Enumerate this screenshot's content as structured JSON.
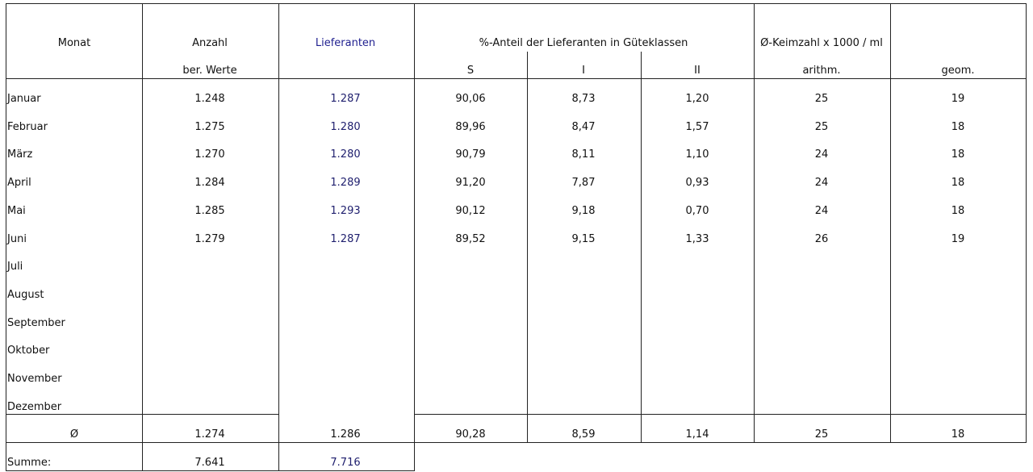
{
  "header": {
    "monat": "Monat",
    "anzahl": "Anzahl",
    "ber_werte": "ber. Werte",
    "lieferanten": "Lieferanten",
    "anteil": "%-Anteil der Lieferanten in Güteklassen",
    "s": "S",
    "i": "I",
    "ii": "II",
    "keimzahl": "Ø-Keimzahl x 1000 / ml",
    "arithm": "arithm.",
    "geom": "geom."
  },
  "rows": [
    {
      "month": "Januar",
      "anzahl": "1.248",
      "lieferanten": "1.287",
      "s": "90,06",
      "i": "8,73",
      "ii": "1,20",
      "arithm": "25",
      "geom": "19"
    },
    {
      "month": "Februar",
      "anzahl": "1.275",
      "lieferanten": "1.280",
      "s": "89,96",
      "i": "8,47",
      "ii": "1,57",
      "arithm": "25",
      "geom": "18"
    },
    {
      "month": "März",
      "anzahl": "1.270",
      "lieferanten": "1.280",
      "s": "90,79",
      "i": "8,11",
      "ii": "1,10",
      "arithm": "24",
      "geom": "18"
    },
    {
      "month": "April",
      "anzahl": "1.284",
      "lieferanten": "1.289",
      "s": "91,20",
      "i": "7,87",
      "ii": "0,93",
      "arithm": "24",
      "geom": "18"
    },
    {
      "month": "Mai",
      "anzahl": "1.285",
      "lieferanten": "1.293",
      "s": "90,12",
      "i": "9,18",
      "ii": "0,70",
      "arithm": "24",
      "geom": "18"
    },
    {
      "month": "Juni",
      "anzahl": "1.279",
      "lieferanten": "1.287",
      "s": "89,52",
      "i": "9,15",
      "ii": "1,33",
      "arithm": "26",
      "geom": "19"
    },
    {
      "month": "Juli"
    },
    {
      "month": "August"
    },
    {
      "month": "September"
    },
    {
      "month": "Oktober"
    },
    {
      "month": "November"
    },
    {
      "month": "Dezember"
    }
  ],
  "average": {
    "label": "Ø",
    "anzahl": "1.274",
    "lieferanten": "1.286",
    "s": "90,28",
    "i": "8,59",
    "ii": "1,14",
    "arithm": "25",
    "geom": "18"
  },
  "total": {
    "label": "Summe:",
    "anzahl": "7.641",
    "lieferanten": "7.716"
  },
  "colors": {
    "grid": "#222222",
    "lieferanten_text": "#1f1f6e"
  }
}
